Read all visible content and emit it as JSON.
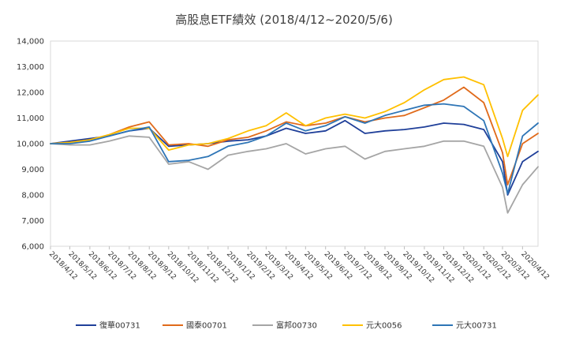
{
  "chart_data": {
    "type": "line",
    "title": "高股息ETF績效 (2018/4/12~2020/5/6)",
    "xlabel": "",
    "ylabel": "",
    "ylim": [
      6000,
      14000
    ],
    "yticks": [
      "6,000",
      "7,000",
      "8,000",
      "9,000",
      "10,000",
      "11,000",
      "12,000",
      "13,000",
      "14,000"
    ],
    "x_tick_labels": [
      "2018/4/12",
      "2018/5/12",
      "2018/6/12",
      "2018/7/12",
      "2018/8/12",
      "2018/9/12",
      "2018/10/12",
      "2018/11/12",
      "2018/12/12",
      "2019/1/12",
      "2019/2/12",
      "2019/3/12",
      "2019/4/12",
      "2019/5/12",
      "2019/6/12",
      "2019/7/12",
      "2019/8/12",
      "2019/9/12",
      "2019/10/12",
      "2019/11/12",
      "2019/12/12",
      "2020/1/12",
      "2020/2/12",
      "2020/3/12",
      "2020/4/12"
    ],
    "x": [
      "2018/4/12",
      "2018/5/12",
      "2018/6/12",
      "2018/7/12",
      "2018/8/12",
      "2018/9/12",
      "2018/10/12",
      "2018/11/12",
      "2018/12/12",
      "2019/1/12",
      "2019/2/12",
      "2019/3/12",
      "2019/4/12",
      "2019/5/12",
      "2019/6/12",
      "2019/7/12",
      "2019/8/12",
      "2019/9/12",
      "2019/10/12",
      "2019/11/12",
      "2019/12/12",
      "2020/1/12",
      "2020/2/12",
      "2020/3/12",
      "2020/3/20",
      "2020/4/12",
      "2020/5/6"
    ],
    "grid": false,
    "legend_position": "bottom",
    "series": [
      {
        "name": "復華00731",
        "color": "#1f3f99",
        "values": [
          10000,
          10100,
          10200,
          10300,
          10500,
          10600,
          9900,
          9950,
          10000,
          10100,
          10150,
          10300,
          10600,
          10400,
          10500,
          10900,
          10400,
          10500,
          10550,
          10650,
          10800,
          10750,
          10550,
          9300,
          8000,
          9300,
          9700
        ]
      },
      {
        "name": "國泰00701",
        "color": "#e06a1a",
        "values": [
          10000,
          10050,
          10150,
          10350,
          10650,
          10850,
          9950,
          10000,
          9900,
          10150,
          10250,
          10500,
          10850,
          10700,
          10800,
          11050,
          10850,
          11000,
          11100,
          11400,
          11700,
          12200,
          11600,
          9650,
          8400,
          10000,
          10400
        ]
      },
      {
        "name": "富邦00730",
        "color": "#a5a5a5",
        "values": [
          10000,
          9950,
          9950,
          10100,
          10300,
          10250,
          9200,
          9300,
          9000,
          9550,
          9700,
          9800,
          10000,
          9600,
          9800,
          9900,
          9400,
          9700,
          9800,
          9900,
          10100,
          10100,
          9900,
          8300,
          7300,
          8400,
          9100
        ]
      },
      {
        "name": "元大0056",
        "color": "#ffc000",
        "values": [
          10000,
          10050,
          10150,
          10350,
          10600,
          10600,
          9750,
          9950,
          10000,
          10200,
          10500,
          10700,
          11200,
          10700,
          11000,
          11150,
          11000,
          11250,
          11600,
          12100,
          12500,
          12600,
          12300,
          10200,
          9500,
          11300,
          11900
        ]
      },
      {
        "name": "元大00731",
        "color": "#2e75b6",
        "values": [
          10000,
          10000,
          10100,
          10300,
          10500,
          10650,
          9300,
          9350,
          9500,
          9900,
          10050,
          10300,
          10800,
          10500,
          10700,
          11050,
          10800,
          11100,
          11300,
          11500,
          11550,
          11450,
          10900,
          8850,
          8050,
          10300,
          10800
        ]
      }
    ]
  }
}
